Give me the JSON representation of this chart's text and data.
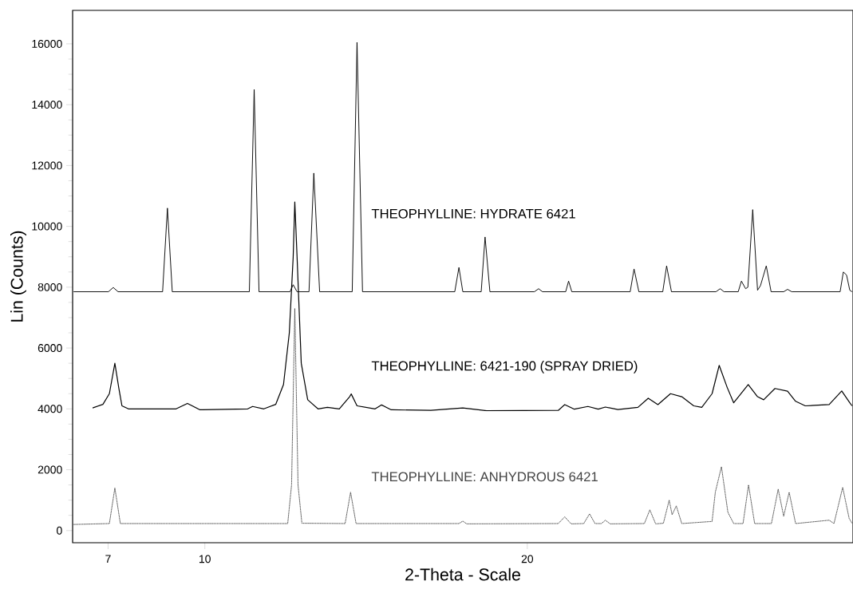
{
  "chart_data": {
    "type": "line",
    "xlabel": "2-Theta - Scale",
    "ylabel": "Lin (Counts)",
    "xlim": [
      5.9,
      30.1
    ],
    "ylim": [
      -400,
      17100
    ],
    "xticks": [
      7,
      10,
      20
    ],
    "yticks": [
      0,
      2000,
      4000,
      6000,
      8000,
      10000,
      12000,
      14000,
      16000
    ],
    "grid": false,
    "legend": false,
    "series": [
      {
        "name": "THEOPHYLLINE: HYDRATE 6421",
        "color": "#000000",
        "line_style": "solid",
        "x": [
          5.93,
          7.01,
          7.16,
          7.31,
          8.69,
          8.84,
          8.99,
          11.38,
          11.53,
          11.68,
          12.64,
          12.74,
          12.86,
          13.23,
          13.38,
          13.56,
          14.57,
          14.72,
          14.89,
          17.75,
          17.88,
          18.0,
          18.57,
          18.69,
          18.84,
          20.22,
          20.35,
          20.47,
          21.19,
          21.28,
          21.38,
          23.19,
          23.31,
          23.46,
          24.2,
          24.32,
          24.47,
          25.85,
          25.98,
          26.1,
          26.54,
          26.64,
          26.77,
          26.84,
          26.99,
          27.14,
          27.23,
          27.41,
          27.56,
          27.95,
          28.07,
          28.2,
          29.7,
          29.8,
          29.9,
          30.0,
          30.07
        ],
        "values": [
          7850,
          7850,
          7990,
          7850,
          7850,
          10600,
          7850,
          7850,
          14500,
          7850,
          7850,
          8080,
          7850,
          7850,
          11750,
          7850,
          7850,
          16050,
          7850,
          7850,
          8650,
          7850,
          7850,
          9650,
          7850,
          7850,
          7950,
          7850,
          7850,
          8200,
          7850,
          7850,
          8600,
          7850,
          7850,
          8700,
          7850,
          7850,
          7950,
          7850,
          7850,
          8200,
          7950,
          8000,
          10550,
          7900,
          8050,
          8700,
          7850,
          7850,
          7930,
          7850,
          7850,
          8500,
          8400,
          7900,
          7850
        ]
      },
      {
        "name": "THEOPHYLLINE: 6421-190 (SPRAY DRIED)",
        "color": "#000000",
        "line_style": "solid",
        "x": [
          6.52,
          6.84,
          7.04,
          7.21,
          7.33,
          7.43,
          7.63,
          9.11,
          9.46,
          9.85,
          11.33,
          11.48,
          11.83,
          12.2,
          12.44,
          12.62,
          12.74,
          12.79,
          12.86,
          12.99,
          13.19,
          13.51,
          13.8,
          14.17,
          14.49,
          14.54,
          14.72,
          15.28,
          15.48,
          15.78,
          17.01,
          18.0,
          18.74,
          20.96,
          21.16,
          21.46,
          21.88,
          22.2,
          22.42,
          22.81,
          23.43,
          23.75,
          24.05,
          24.44,
          24.79,
          25.16,
          25.41,
          25.73,
          25.95,
          26.2,
          26.4,
          26.85,
          27.14,
          27.33,
          27.68,
          28.07,
          28.32,
          28.62,
          29.36,
          29.75,
          30.0,
          30.07
        ],
        "values": [
          4030,
          4150,
          4500,
          5500,
          4700,
          4100,
          4000,
          4000,
          4180,
          3970,
          4000,
          4080,
          4000,
          4150,
          4800,
          6500,
          9000,
          10800,
          9000,
          5500,
          4300,
          4000,
          4050,
          4000,
          4400,
          4490,
          4100,
          4000,
          4130,
          3970,
          3950,
          4030,
          3940,
          3950,
          4140,
          3990,
          4080,
          3990,
          4060,
          3980,
          4050,
          4350,
          4140,
          4500,
          4400,
          4100,
          4050,
          4500,
          5430,
          4700,
          4200,
          4800,
          4400,
          4300,
          4670,
          4580,
          4250,
          4100,
          4140,
          4590,
          4200,
          4100
        ]
      },
      {
        "name": "THEOPHYLLINE: ANHYDROUS 6421",
        "color": "#444444",
        "line_style": "dotted",
        "x": [
          5.93,
          7.04,
          7.21,
          7.38,
          12.57,
          12.69,
          12.79,
          12.89,
          13.01,
          14.35,
          14.52,
          14.69,
          17.88,
          18.0,
          18.12,
          20.96,
          21.16,
          21.36,
          21.75,
          21.93,
          22.1,
          22.3,
          22.42,
          22.57,
          23.63,
          23.8,
          23.98,
          24.22,
          24.4,
          24.49,
          24.62,
          24.79,
          25.73,
          25.83,
          26.02,
          26.22,
          26.4,
          26.69,
          26.86,
          27.05,
          27.57,
          27.78,
          27.95,
          28.12,
          28.32,
          29.36,
          29.51,
          29.78,
          29.98,
          30.07
        ],
        "values": [
          200,
          230,
          1400,
          230,
          230,
          1500,
          7300,
          1500,
          240,
          230,
          1260,
          230,
          230,
          310,
          220,
          230,
          450,
          220,
          230,
          550,
          230,
          230,
          340,
          220,
          230,
          680,
          220,
          240,
          1000,
          520,
          810,
          230,
          300,
          1260,
          2100,
          600,
          230,
          230,
          1500,
          230,
          230,
          1360,
          470,
          1260,
          230,
          340,
          230,
          1420,
          400,
          240
        ]
      }
    ]
  }
}
